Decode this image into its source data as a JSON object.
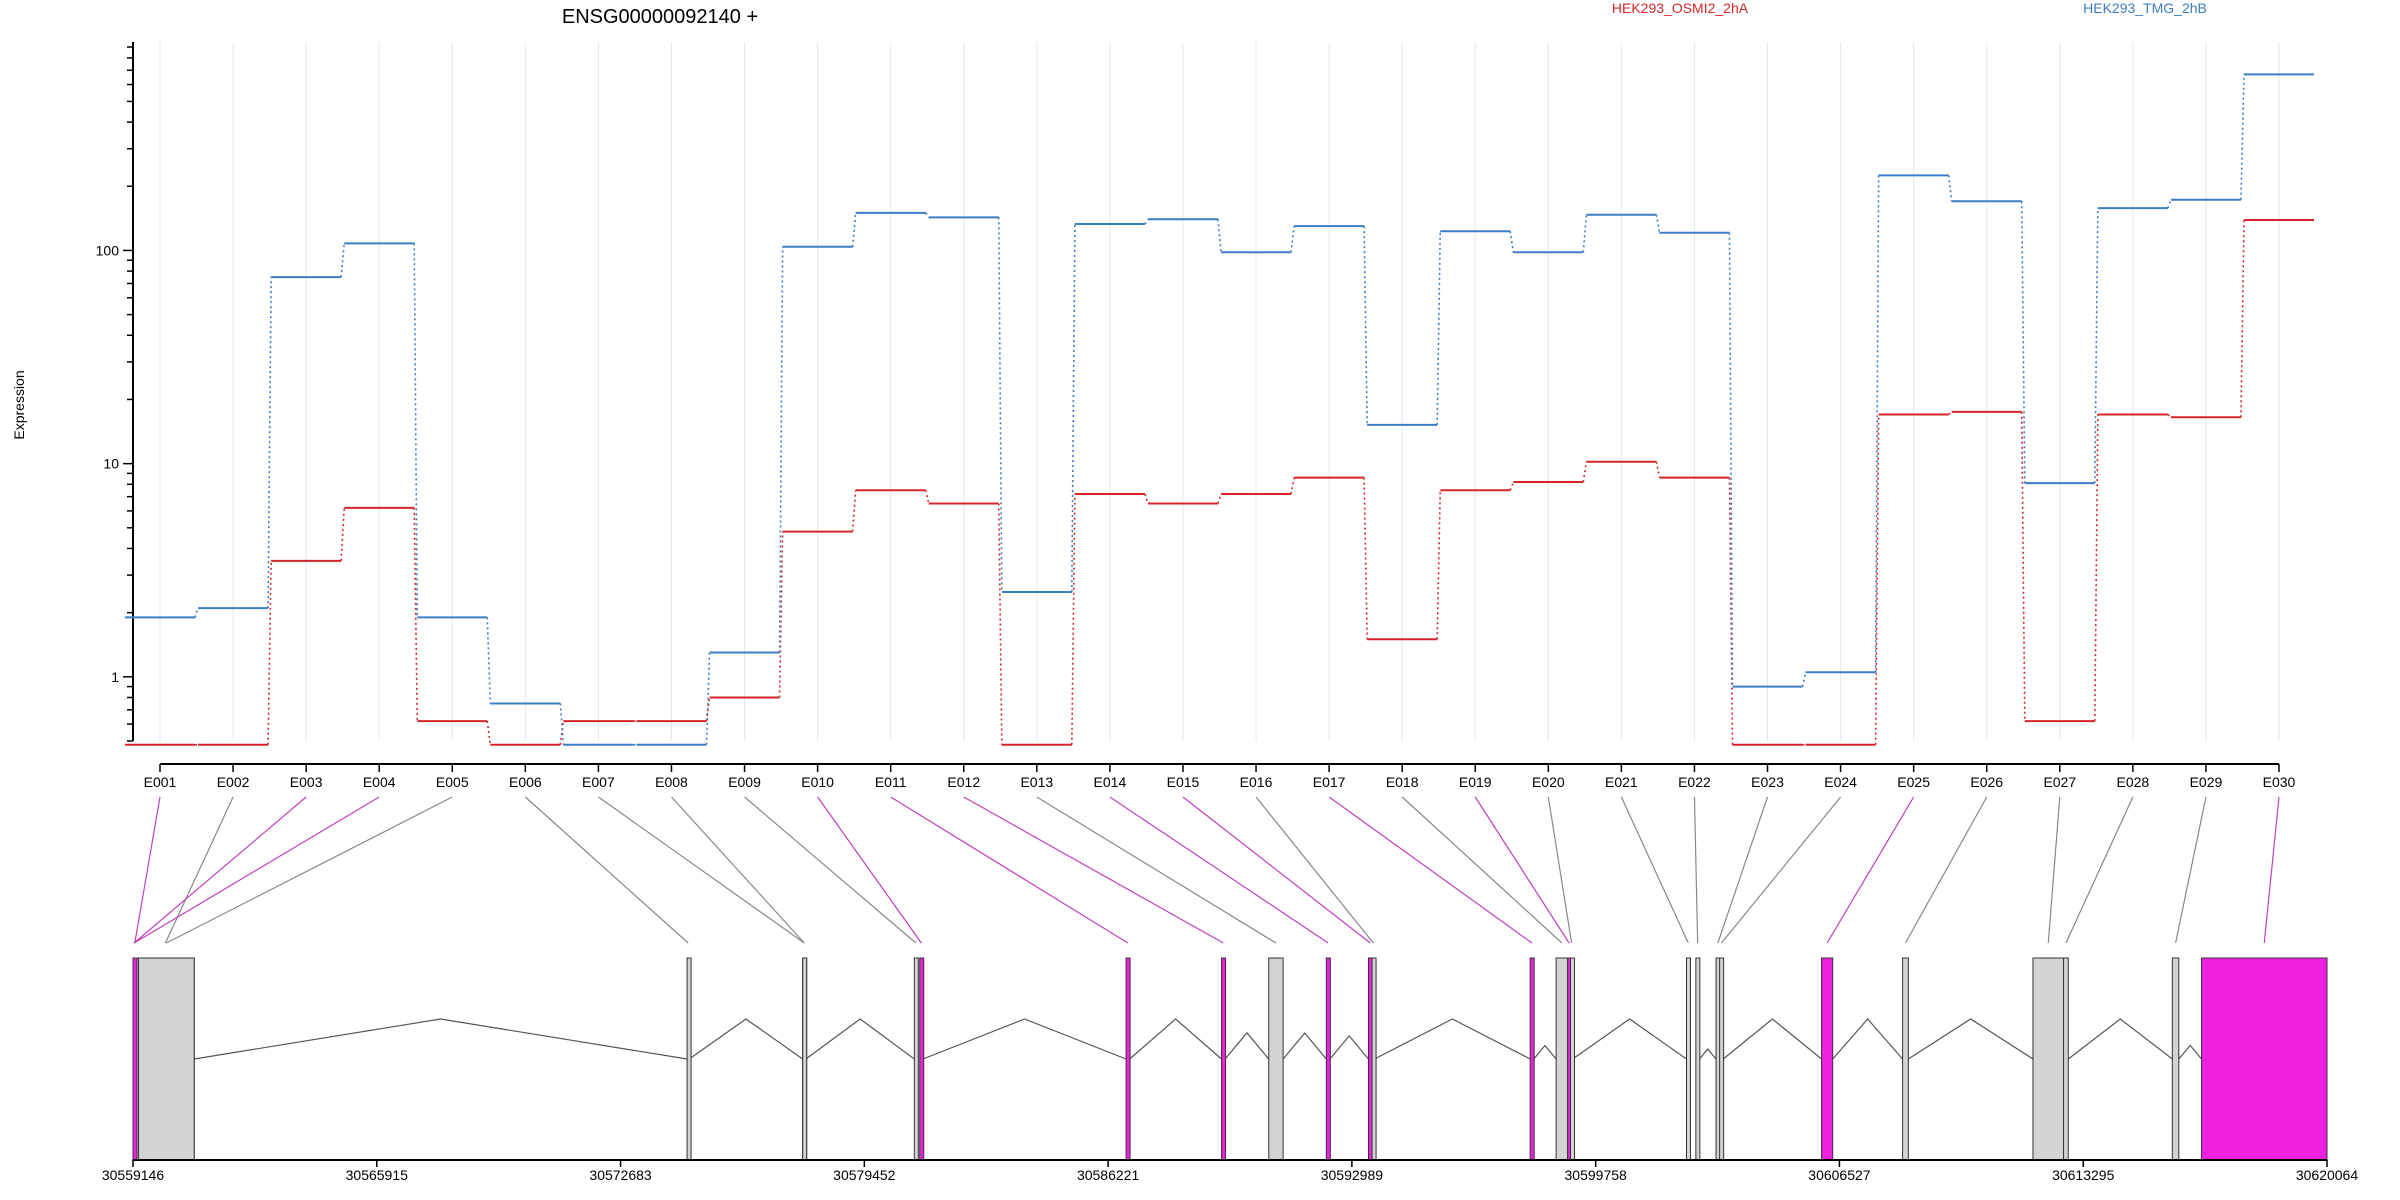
{
  "title": "ENSG00000092140 +",
  "legend": [
    {
      "name": "HEK293_OSMI2_2hA",
      "color": "#d7262b"
    },
    {
      "name": "HEK293_TMG_2hB",
      "color": "#3d7dc4"
    }
  ],
  "chart_data": {
    "type": "line",
    "title": "ENSG00000092140 +",
    "xlabel": "",
    "ylabel": "Expression",
    "yscale": "log",
    "ylim": [
      0.5,
      950
    ],
    "yticks": [
      1,
      10,
      100
    ],
    "grid": true,
    "legend_placement": "top",
    "categories": [
      "E001",
      "E002",
      "E003",
      "E004",
      "E005",
      "E006",
      "E007",
      "E008",
      "E009",
      "E010",
      "E011",
      "E012",
      "E013",
      "E014",
      "E015",
      "E016",
      "E017",
      "E018",
      "E019",
      "E020",
      "E021",
      "E022",
      "E023",
      "E024",
      "E025",
      "E026",
      "E027",
      "E028",
      "E029",
      "E030"
    ],
    "series": [
      {
        "name": "HEK293_OSMI2_2hA",
        "color": "#d7262b",
        "values": [
          0.48,
          0.48,
          3.5,
          6.2,
          0.62,
          0.48,
          0.62,
          0.62,
          0.8,
          4.8,
          7.5,
          6.5,
          0.48,
          7.2,
          6.5,
          7.2,
          8.6,
          1.5,
          7.5,
          8.2,
          10.2,
          8.6,
          0.48,
          0.48,
          17.0,
          17.5,
          0.62,
          17.0,
          16.5,
          139
        ]
      },
      {
        "name": "HEK293_TMG_2hB",
        "color": "#3d7dc4",
        "values": [
          1.9,
          2.1,
          75,
          108,
          1.9,
          0.75,
          0.48,
          0.48,
          1.3,
          104,
          150,
          143,
          2.5,
          133,
          140,
          98,
          130,
          15.2,
          123,
          98,
          147,
          121,
          0.9,
          1.05,
          225,
          170,
          8.1,
          158,
          173,
          670
        ]
      }
    ],
    "genomic_coordinates": [
      "30559146",
      "30565915",
      "30572683",
      "30579452",
      "30586221",
      "30592989",
      "30599758",
      "30606527",
      "30613295",
      "30620064"
    ],
    "gene_start": 30559146,
    "gene_end": 30620064,
    "exon_colors": {
      "normal": "#d3d3d3",
      "significant": "#f020e0"
    },
    "exons": [
      {
        "id": "E001",
        "start": 30559146,
        "end": 30559246,
        "significant": true
      },
      {
        "id": "E002",
        "start": 30559246,
        "end": 30560846,
        "significant": false
      },
      {
        "id": "E003",
        "start": 30559146,
        "end": 30559206,
        "significant": true
      },
      {
        "id": "E004",
        "start": 30559146,
        "end": 30559206,
        "significant": true
      },
      {
        "id": "E005",
        "start": 30559300,
        "end": 30560846,
        "significant": false
      },
      {
        "id": "E006",
        "start": 30574530,
        "end": 30574590,
        "significant": false
      },
      {
        "id": "E007",
        "start": 30577740,
        "end": 30577830,
        "significant": false
      },
      {
        "id": "E008",
        "start": 30577740,
        "end": 30577830,
        "significant": false
      },
      {
        "id": "E009",
        "start": 30580840,
        "end": 30580930,
        "significant": false
      },
      {
        "id": "E010",
        "start": 30580990,
        "end": 30581080,
        "significant": true
      },
      {
        "id": "E011",
        "start": 30586720,
        "end": 30586820,
        "significant": true
      },
      {
        "id": "E012",
        "start": 30589370,
        "end": 30589470,
        "significant": true
      },
      {
        "id": "E013",
        "start": 30590680,
        "end": 30591080,
        "significant": false
      },
      {
        "id": "E014",
        "start": 30592280,
        "end": 30592380,
        "significant": true
      },
      {
        "id": "E015",
        "start": 30593450,
        "end": 30593550,
        "significant": true
      },
      {
        "id": "E016",
        "start": 30593550,
        "end": 30593620,
        "significant": false
      },
      {
        "id": "E017",
        "start": 30597940,
        "end": 30598040,
        "significant": true
      },
      {
        "id": "E018",
        "start": 30598660,
        "end": 30598980,
        "significant": false
      },
      {
        "id": "E019",
        "start": 30598980,
        "end": 30599060,
        "significant": true
      },
      {
        "id": "E020",
        "start": 30599060,
        "end": 30599120,
        "significant": false
      },
      {
        "id": "E021",
        "start": 30602280,
        "end": 30602380,
        "significant": false
      },
      {
        "id": "E022",
        "start": 30602540,
        "end": 30602640,
        "significant": false
      },
      {
        "id": "E023",
        "start": 30603100,
        "end": 30603200,
        "significant": false
      },
      {
        "id": "E024",
        "start": 30603200,
        "end": 30603300,
        "significant": false
      },
      {
        "id": "E025",
        "start": 30606030,
        "end": 30606340,
        "significant": true
      },
      {
        "id": "E026",
        "start": 30608280,
        "end": 30608440,
        "significant": false
      },
      {
        "id": "E027",
        "start": 30611900,
        "end": 30612750,
        "significant": false
      },
      {
        "id": "E028",
        "start": 30612750,
        "end": 30612880,
        "significant": false
      },
      {
        "id": "E029",
        "start": 30615770,
        "end": 30615950,
        "significant": false
      },
      {
        "id": "E030",
        "start": 30616580,
        "end": 30620064,
        "significant": true
      }
    ]
  }
}
